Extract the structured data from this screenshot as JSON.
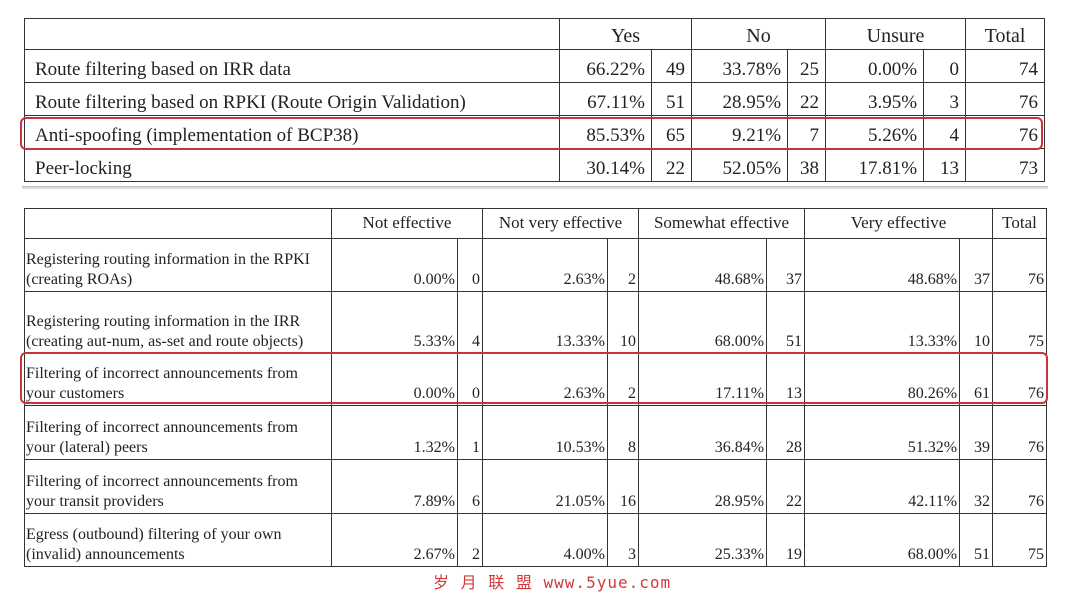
{
  "table1": {
    "headers": {
      "yes": "Yes",
      "no": "No",
      "unsure": "Unsure",
      "total": "Total"
    },
    "rows": [
      {
        "label": "Route filtering based on IRR data",
        "yes_pct": "66.22%",
        "yes_n": "49",
        "no_pct": "33.78%",
        "no_n": "25",
        "unsure_pct": "0.00%",
        "unsure_n": "0",
        "total": "74"
      },
      {
        "label": "Route filtering based on RPKI (Route Origin Validation)",
        "yes_pct": "67.11%",
        "yes_n": "51",
        "no_pct": "28.95%",
        "no_n": "22",
        "unsure_pct": "3.95%",
        "unsure_n": "3",
        "total": "76"
      },
      {
        "label": "Anti-spoofing (implementation of BCP38)",
        "yes_pct": "85.53%",
        "yes_n": "65",
        "no_pct": "9.21%",
        "no_n": "7",
        "unsure_pct": "5.26%",
        "unsure_n": "4",
        "total": "76"
      },
      {
        "label": "Peer-locking",
        "yes_pct": "30.14%",
        "yes_n": "22",
        "no_pct": "52.05%",
        "no_n": "38",
        "unsure_pct": "17.81%",
        "unsure_n": "13",
        "total": "73"
      }
    ]
  },
  "table2": {
    "headers": {
      "c1": "Not effective",
      "c2": "Not very effective",
      "c3": "Somewhat effective",
      "c4": "Very effective",
      "total": "Total"
    },
    "rows": [
      {
        "label": "Registering routing information in the RPKI (creating ROAs)",
        "c1_pct": "0.00%",
        "c1_n": "0",
        "c2_pct": "2.63%",
        "c2_n": "2",
        "c3_pct": "48.68%",
        "c3_n": "37",
        "c4_pct": "48.68%",
        "c4_n": "37",
        "total": "76"
      },
      {
        "label": "Registering routing information in the IRR (creating aut-num, as-set and route objects)",
        "c1_pct": "5.33%",
        "c1_n": "4",
        "c2_pct": "13.33%",
        "c2_n": "10",
        "c3_pct": "68.00%",
        "c3_n": "51",
        "c4_pct": "13.33%",
        "c4_n": "10",
        "total": "75"
      },
      {
        "label": "Filtering of incorrect announcements from your customers",
        "c1_pct": "0.00%",
        "c1_n": "0",
        "c2_pct": "2.63%",
        "c2_n": "2",
        "c3_pct": "17.11%",
        "c3_n": "13",
        "c4_pct": "80.26%",
        "c4_n": "61",
        "total": "76"
      },
      {
        "label": "Filtering of incorrect announcements from your (lateral) peers",
        "c1_pct": "1.32%",
        "c1_n": "1",
        "c2_pct": "10.53%",
        "c2_n": "8",
        "c3_pct": "36.84%",
        "c3_n": "28",
        "c4_pct": "51.32%",
        "c4_n": "39",
        "total": "76"
      },
      {
        "label": "Filtering of incorrect announcements from your transit providers",
        "c1_pct": "7.89%",
        "c1_n": "6",
        "c2_pct": "21.05%",
        "c2_n": "16",
        "c3_pct": "28.95%",
        "c3_n": "22",
        "c4_pct": "42.11%",
        "c4_n": "32",
        "total": "76"
      },
      {
        "label": "Egress (outbound) filtering of your own (invalid) announcements",
        "c1_pct": "2.67%",
        "c1_n": "2",
        "c2_pct": "4.00%",
        "c2_n": "3",
        "c3_pct": "25.33%",
        "c3_n": "19",
        "c4_pct": "68.00%",
        "c4_n": "51",
        "total": "75"
      }
    ]
  },
  "watermark": "岁 月 联 盟  www.5yue.com",
  "highlight_color": "#c9343a"
}
